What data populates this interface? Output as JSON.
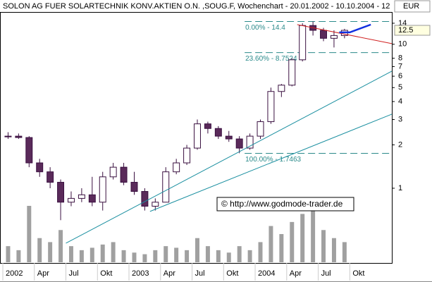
{
  "chart_data": {
    "type": "candlestick",
    "title": "SOLON AG FUER SOLARTECHNIK KONV.AKTIEN O.N. ,SOUG.F, Wochenchart - 20.01.2002 - 10.10.2004 - 12",
    "currency": "EUR",
    "watermark": "© http://www.godmode-trader.de",
    "log_scale": true,
    "x": [
      "2002-01",
      "2002-02",
      "2002-03",
      "2002-04",
      "2002-05",
      "2002-06",
      "2002-07",
      "2002-08",
      "2002-09",
      "2002-10",
      "2002-11",
      "2002-12",
      "2003-01",
      "2003-02",
      "2003-03",
      "2003-04",
      "2003-05",
      "2003-06",
      "2003-07",
      "2003-08",
      "2003-09",
      "2003-10",
      "2003-11",
      "2003-12",
      "2004-01",
      "2004-02",
      "2004-03",
      "2004-04",
      "2004-05",
      "2004-06",
      "2004-07",
      "2004-08",
      "2004-09"
    ],
    "open": [
      2.3,
      2.3,
      2.25,
      1.5,
      1.3,
      1.1,
      0.8,
      0.85,
      0.9,
      0.8,
      1.2,
      1.4,
      1.1,
      0.95,
      0.75,
      0.8,
      1.3,
      1.5,
      1.9,
      2.8,
      2.6,
      2.3,
      2.2,
      1.9,
      2.3,
      2.9,
      4.7,
      5.2,
      7.8,
      13.5,
      12.5,
      11.0,
      11.5
    ],
    "high": [
      2.45,
      2.4,
      2.3,
      1.6,
      1.4,
      1.15,
      0.95,
      1.0,
      1.2,
      1.3,
      1.5,
      1.5,
      1.3,
      1.0,
      0.85,
      1.4,
      1.6,
      2.0,
      3.0,
      2.9,
      2.7,
      2.5,
      2.3,
      2.4,
      3.0,
      5.0,
      5.3,
      8.0,
      14.0,
      14.4,
      13.0,
      12.5,
      12.8
    ],
    "low": [
      2.2,
      2.2,
      1.4,
      1.2,
      1.0,
      0.6,
      0.75,
      0.8,
      0.75,
      0.7,
      1.15,
      1.05,
      0.9,
      0.7,
      0.7,
      0.8,
      1.25,
      1.45,
      1.85,
      2.4,
      2.2,
      2.1,
      1.75,
      1.85,
      2.2,
      2.8,
      4.3,
      5.1,
      7.6,
      11.5,
      10.5,
      9.5,
      11.0
    ],
    "close": [
      2.3,
      2.25,
      1.5,
      1.3,
      1.1,
      0.8,
      0.85,
      0.9,
      0.8,
      1.2,
      1.4,
      1.1,
      0.95,
      0.75,
      0.8,
      1.3,
      1.5,
      1.9,
      2.8,
      2.6,
      2.3,
      2.2,
      1.9,
      2.3,
      2.9,
      4.7,
      5.2,
      7.8,
      13.5,
      12.5,
      11.0,
      11.5,
      12.5
    ],
    "volume": [
      20,
      15,
      70,
      30,
      25,
      40,
      20,
      15,
      18,
      22,
      25,
      15,
      12,
      10,
      15,
      20,
      18,
      15,
      30,
      20,
      15,
      12,
      20,
      15,
      25,
      45,
      35,
      50,
      60,
      65,
      40,
      30,
      25
    ],
    "up_color": "#ffffff",
    "down_color": "#5a2a5a",
    "volume_color": "#a0a0a0",
    "xlim": [
      "2002-01",
      "2005-02"
    ],
    "xticks": [
      {
        "value": "2002-01",
        "label": "2002"
      },
      {
        "value": "2002-04",
        "label": "Apr"
      },
      {
        "value": "2002-07",
        "label": "Jul"
      },
      {
        "value": "2002-10",
        "label": "Okt"
      },
      {
        "value": "2003-01",
        "label": "2003"
      },
      {
        "value": "2003-04",
        "label": "Apr"
      },
      {
        "value": "2003-07",
        "label": "Jul"
      },
      {
        "value": "2003-10",
        "label": "Okt"
      },
      {
        "value": "2004-01",
        "label": "2004"
      },
      {
        "value": "2004-04",
        "label": "Apr"
      },
      {
        "value": "2004-07",
        "label": "Jul"
      },
      {
        "value": "2004-10",
        "label": "Okt"
      }
    ],
    "ylim": [
      0.306,
      16.2
    ],
    "yticks": [
      1,
      2,
      3,
      4,
      5,
      6,
      7,
      8,
      10,
      14
    ],
    "last_price": 12.5,
    "fib_levels": [
      {
        "value": 14.4,
        "label": "0.00% - 14.4"
      },
      {
        "value": 8.7524,
        "label": "23.60% - 8.7524"
      },
      {
        "value": 1.7463,
        "label": "100.00% - 1.7463"
      }
    ],
    "fib_start": "2003-12",
    "fib_color": "#2a8a8a",
    "trend_lines": [
      {
        "color": "#1a8fa0",
        "points": [
          [
            "2002-07",
            0.415
          ],
          [
            "2005-02",
            6.5
          ]
        ]
      },
      {
        "color": "#1a8fa0",
        "points": [
          [
            "2003-03",
            0.69
          ],
          [
            "2005-02",
            3.27
          ]
        ]
      },
      {
        "color": "#d02020",
        "points": [
          [
            "2004-05",
            13.7
          ],
          [
            "2005-02",
            10.1
          ]
        ]
      },
      {
        "color": "#1030e0",
        "points": [
          [
            "2004-09",
            12.1
          ],
          [
            "2004-10",
            12.1
          ],
          [
            "2004-12",
            13.7
          ]
        ]
      }
    ]
  }
}
